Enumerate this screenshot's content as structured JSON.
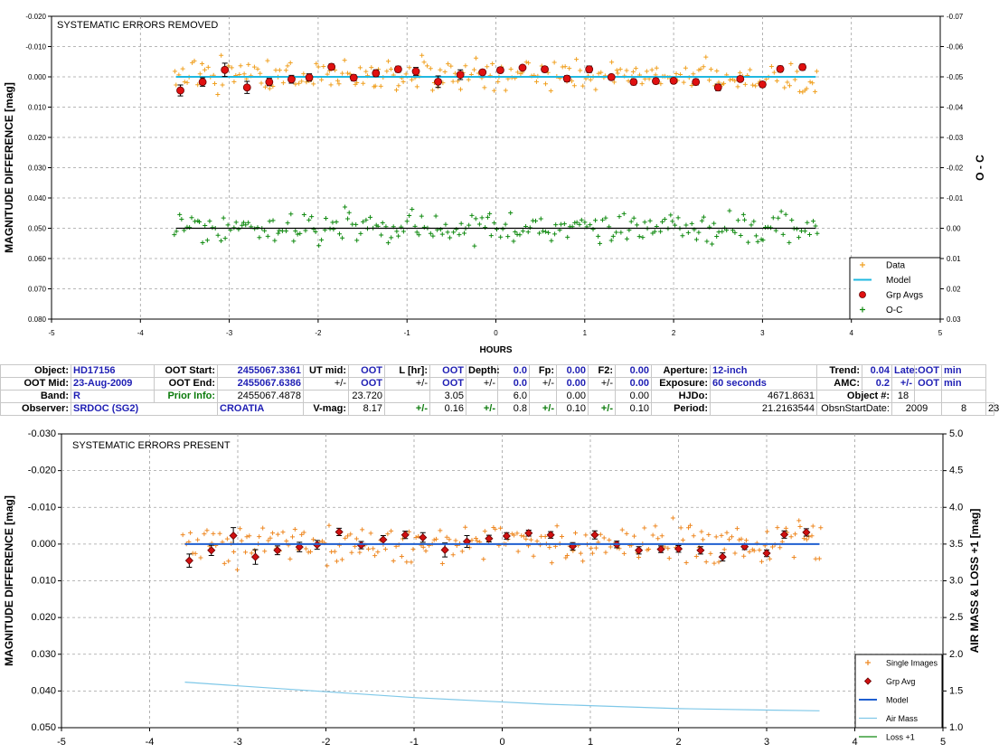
{
  "chart_data": [
    {
      "type": "scatter",
      "note": "SYSTEMATIC ERRORS REMOVED",
      "xlabel": "HOURS",
      "ylabel": "MAGNITUDE DIFFERENCE [mag]",
      "ylabel_right": "O - C",
      "xlim": [
        -5,
        5
      ],
      "ylim": [
        -0.02,
        0.08
      ],
      "ylim_right": [
        -0.07,
        0.03
      ],
      "x_ticks": [
        "-5",
        "-4",
        "-3",
        "-2",
        "-1",
        "0",
        "1",
        "2",
        "3",
        "4",
        "5"
      ],
      "y_ticks": [
        "-0.020",
        "-0.010",
        "0.000",
        "0.010",
        "0.020",
        "0.030",
        "0.040",
        "0.050",
        "0.060",
        "0.070",
        "0.080"
      ],
      "y_ticks_right": [
        "-0.07",
        "-0.06",
        "-0.05",
        "-0.04",
        "-0.03",
        "-0.02",
        "-0.01",
        "0.00",
        "0.01",
        "0.02",
        "0.03"
      ],
      "grid": true,
      "legend_position": "bottom-right",
      "series": [
        {
          "name": "Data",
          "style": "plus",
          "color": "#f0a020",
          "x_range": [
            -3.62,
            3.62
          ],
          "count": 250,
          "center": 0.0,
          "scatter": 0.005
        },
        {
          "name": "Model",
          "style": "line",
          "color": "#20b8e0",
          "x": [
            -3.6,
            3.6
          ],
          "y": [
            0.0,
            0.0
          ]
        },
        {
          "name": "Grp Avgs",
          "style": "dot-errorbar",
          "color": "#e01010",
          "x": [
            -3.55,
            -3.3,
            -3.05,
            -2.8,
            -2.55,
            -2.3,
            -2.1,
            -1.85,
            -1.6,
            -1.35,
            -1.1,
            -0.9,
            -0.65,
            -0.4,
            -0.15,
            0.05,
            0.3,
            0.55,
            0.8,
            1.05,
            1.3,
            1.55,
            1.8,
            2.0,
            2.25,
            2.5,
            2.75,
            3.0,
            3.2,
            3.45
          ],
          "y": [
            0.0045,
            0.0017,
            -0.0023,
            0.0035,
            0.0017,
            0.0008,
            0.0002,
            -0.0033,
            0.0003,
            -0.0012,
            -0.0025,
            -0.0018,
            0.0016,
            -0.0007,
            -0.0015,
            -0.0022,
            -0.003,
            -0.0025,
            0.0006,
            -0.0025,
            0.0001,
            0.0017,
            0.0014,
            0.0013,
            0.0017,
            0.0035,
            0.0007,
            0.0025,
            -0.0026,
            -0.0032
          ],
          "err": [
            0.0018,
            0.0014,
            0.0022,
            0.002,
            0.0012,
            0.0013,
            0.0012,
            0.001,
            0.001,
            0.0011,
            0.001,
            0.0013,
            0.0019,
            0.0016,
            0.0009,
            0.0009,
            0.0008,
            0.0009,
            0.001,
            0.0011,
            0.0009,
            0.001,
            0.0009,
            0.0009,
            0.001,
            0.0011,
            0.0008,
            0.0009,
            0.001,
            0.001
          ]
        },
        {
          "name": "O-C",
          "style": "plus",
          "color": "#108a10",
          "x_range": [
            -3.62,
            3.62
          ],
          "count": 250,
          "center": 0.05,
          "scatter": 0.005
        },
        {
          "name": "",
          "style": "line",
          "color": "#000000",
          "x": [
            -3.6,
            3.6
          ],
          "y": [
            0.05,
            0.05
          ]
        }
      ]
    },
    {
      "type": "scatter",
      "note": "SYSTEMATIC ERRORS PRESENT",
      "xlabel": "",
      "ylabel": "MAGNITUDE DIFFERENCE [mag]",
      "ylabel_right": "AIR MASS & LOSS +1 [mag]",
      "xlim": [
        -5,
        5
      ],
      "ylim": [
        -0.03,
        0.05
      ],
      "ylim_right": [
        5.0,
        1.0
      ],
      "x_ticks": [
        "-5",
        "-4",
        "-3",
        "-2",
        "-1",
        "0",
        "1",
        "2",
        "3",
        "4",
        "5"
      ],
      "y_ticks": [
        "-0.030",
        "-0.020",
        "-0.010",
        "0.000",
        "0.010",
        "0.020",
        "0.030",
        "0.040",
        "0.050"
      ],
      "y_ticks_right": [
        "5.0",
        "4.5",
        "4.0",
        "3.5",
        "3.0",
        "2.5",
        "2.0",
        "1.5",
        "1.0"
      ],
      "grid": true,
      "legend_position": "bottom-right",
      "series": [
        {
          "name": "Single Images",
          "style": "plus",
          "color": "#ee8822",
          "x_range": [
            -3.62,
            3.62
          ],
          "count": 250,
          "center": 0.0,
          "scatter": 0.005
        },
        {
          "name": "Grp Avg",
          "style": "diamond-errorbar",
          "color": "#d01010",
          "x": [
            -3.55,
            -3.3,
            -3.05,
            -2.8,
            -2.55,
            -2.3,
            -2.1,
            -1.85,
            -1.6,
            -1.35,
            -1.1,
            -0.9,
            -0.65,
            -0.4,
            -0.15,
            0.05,
            0.3,
            0.55,
            0.8,
            1.05,
            1.3,
            1.55,
            1.8,
            2.0,
            2.25,
            2.5,
            2.75,
            3.0,
            3.2,
            3.45
          ],
          "y": [
            0.0045,
            0.0017,
            -0.0023,
            0.0035,
            0.0017,
            0.0008,
            0.0002,
            -0.0033,
            0.0003,
            -0.0012,
            -0.0025,
            -0.0018,
            0.0016,
            -0.0007,
            -0.0015,
            -0.0022,
            -0.003,
            -0.0025,
            0.0006,
            -0.0025,
            0.0001,
            0.0017,
            0.0014,
            0.0013,
            0.0017,
            0.0035,
            0.0007,
            0.0025,
            -0.0026,
            -0.0032
          ],
          "err": [
            0.0018,
            0.0014,
            0.0022,
            0.002,
            0.0012,
            0.0013,
            0.0012,
            0.001,
            0.001,
            0.0011,
            0.001,
            0.0013,
            0.0019,
            0.0016,
            0.0009,
            0.0009,
            0.0008,
            0.0009,
            0.001,
            0.0011,
            0.0009,
            0.001,
            0.0009,
            0.0009,
            0.001,
            0.0011,
            0.0008,
            0.0009,
            0.001,
            0.001
          ]
        },
        {
          "name": "Model",
          "style": "line",
          "color": "#1f5fd0",
          "x": [
            -3.6,
            3.6
          ],
          "y": [
            0.0,
            0.0
          ]
        },
        {
          "name": "Air Mass",
          "style": "line",
          "color": "#7fc8e8",
          "axis": "right",
          "x": [
            -3.6,
            -3.0,
            -2.5,
            -2.0,
            -1.5,
            -1.0,
            -0.5,
            0.0,
            0.5,
            1.0,
            1.5,
            2.0,
            2.5,
            3.0,
            3.6
          ],
          "y": [
            1.62,
            1.57,
            1.53,
            1.49,
            1.45,
            1.41,
            1.38,
            1.35,
            1.32,
            1.3,
            1.28,
            1.26,
            1.25,
            1.24,
            1.23
          ]
        },
        {
          "name": "Loss +1",
          "style": "line",
          "color": "#108a10",
          "axis": "right"
        }
      ]
    }
  ],
  "info": {
    "r1": {
      "object_lbl": "Object:",
      "object": "HD17156",
      "oot_start_lbl": "OOT Start:",
      "oot_start": "2455067.3361",
      "ut_mid_lbl": "UT mid:",
      "ut_mid": "OOT",
      "l_hr_lbl": "L [hr]:",
      "l_hr": "OOT",
      "depth_lbl": "Depth:",
      "depth": "0.0",
      "fp_lbl": "Fp:",
      "fp": "0.00",
      "f2_lbl": "F2:",
      "f2": "0.00",
      "aperture_lbl": "Aperture:",
      "aperture": "12-inch",
      "trend_lbl": "Trend:",
      "trend": "0.04",
      "late_lbl": "Late:",
      "late": "OOT",
      "late_unit": "min"
    },
    "r2": {
      "oot_mid_lbl": "OOT Mid:",
      "oot_mid": "23-Aug-2009",
      "oot_end_lbl": "OOT End:",
      "oot_end": "2455067.6386",
      "pm1": "+/-",
      "ut_mid_err": "OOT",
      "pm2": "+/-",
      "l_err": "OOT",
      "pm3": "+/-",
      "depth_err": "0.0",
      "pm4": "+/-",
      "fp_err": "0.00",
      "pm5": "+/-",
      "f2_err": "0.00",
      "exposure_lbl": "Exposure:",
      "exposure": "60 seconds",
      "amc_lbl": "AMC:",
      "amc": "0.2",
      "pm6": "+/-",
      "early": "OOT",
      "early_unit": "min"
    },
    "r3": {
      "band_lbl": "Band:",
      "band": "R",
      "prior_lbl": "Prior Info:",
      "prior_jd": "2455067.4878",
      "prior_ut": "23.720",
      "prior_l": "3.05",
      "prior_depth": "6.0",
      "prior_fp": "0.00",
      "prior_f2": "0.00",
      "hjdo_lbl": "HJDo:",
      "hjdo": "4671.8631",
      "objnum_lbl": "Object #:",
      "objnum": "18"
    },
    "r4": {
      "observer_lbl": "Observer:",
      "observer": "SRDOC (SG2)",
      "country": "CROATIA",
      "vmag_lbl": "V-mag:",
      "vmag": "8.17",
      "pm1": "+/-",
      "vmag_err": "0.16",
      "pm2": "+/-",
      "depth_err": "0.8",
      "pm3": "+/-",
      "fp_err": "0.10",
      "pm4": "+/-",
      "f2_err": "0.10",
      "period_lbl": "Period:",
      "period": "21.2163544",
      "obsdate_lbl": "ObsnStartDate:",
      "year": "2009",
      "month": "8",
      "day": "23"
    }
  }
}
